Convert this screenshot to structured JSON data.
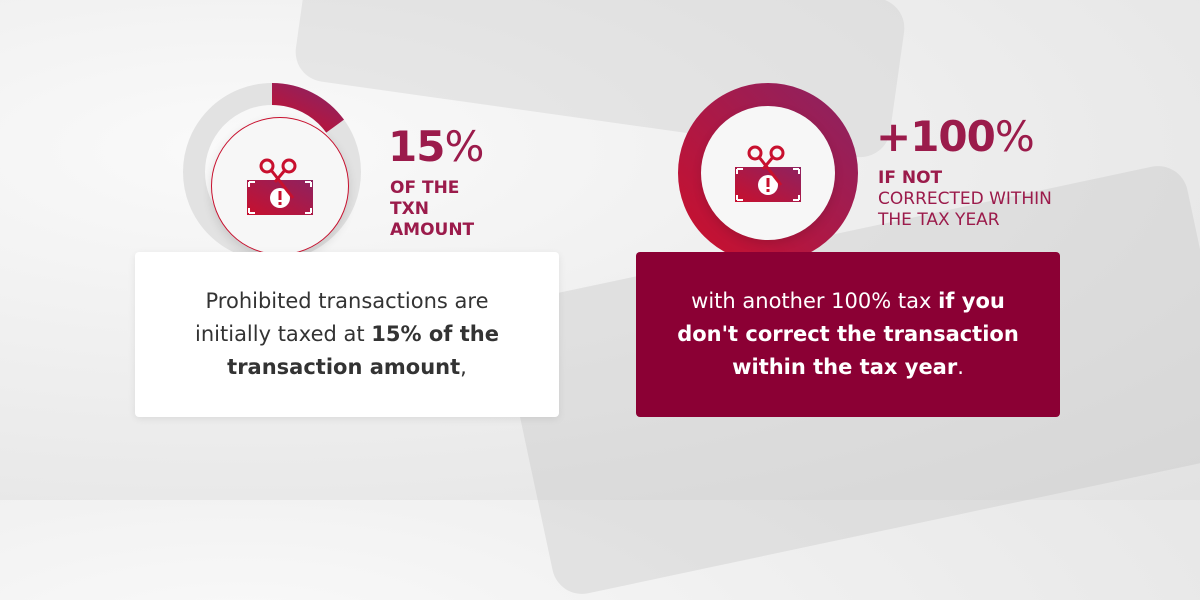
{
  "colors": {
    "accent": "#9b1b4b",
    "card_dark": "#8b0034",
    "gradient_start": "#c8102e",
    "gradient_end": "#8e2260"
  },
  "left": {
    "percent_value": "15",
    "percent_sign": "%",
    "progress": 0.15,
    "caption": "OF THE TXN AMOUNT",
    "icon": "money-scissors-icon",
    "card": {
      "text1": "Prohibited transactions are initially taxed at ",
      "bold": "15% of the transaction amount",
      "text2": ","
    }
  },
  "right": {
    "percent_value": "+100",
    "percent_sign": "%",
    "progress": 1.0,
    "caption_pre": "IF ",
    "caption_bold": "NOT",
    "caption_post": " CORRECTED WITHIN THE TAX YEAR",
    "icon": "money-scissors-icon",
    "card": {
      "text1": "with another 100% tax ",
      "bold": "if you don't correct the transaction within the tax year",
      "text2": "."
    }
  }
}
